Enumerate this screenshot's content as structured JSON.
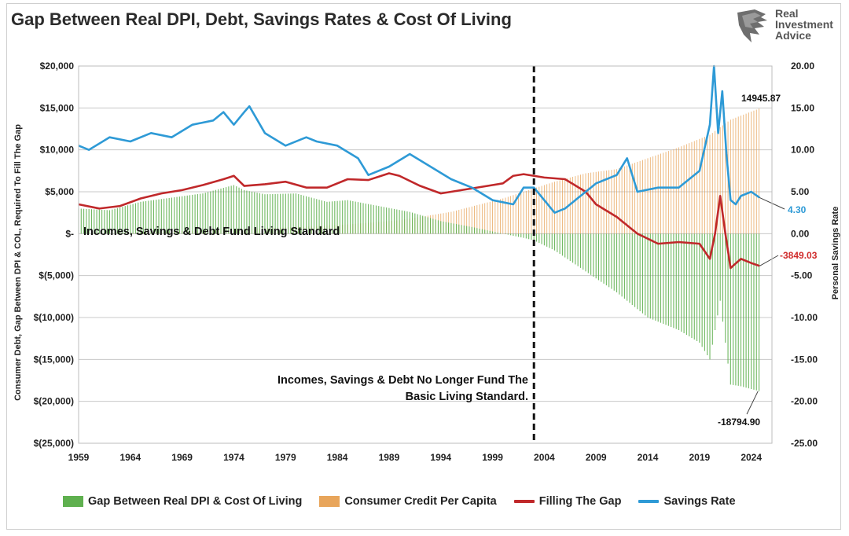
{
  "title": "Gap Between Real DPI, Debt, Savings Rates & Cost Of Living",
  "logo": {
    "brand_line1": "Real",
    "brand_line2": "Investment",
    "brand_line3": "Advice"
  },
  "chart_data": {
    "type": "bar+line",
    "title": "Gap Between Real DPI, Debt, Savings Rates & Cost Of Living",
    "ylabel_left": "Consumer Debt, Gap Between DPI & COL, Required To Fill The Gap",
    "ylabel_right": "Personal Savings Rate",
    "ylim_left": [
      -25000,
      20000
    ],
    "ylim_right": [
      -25,
      20
    ],
    "yticks_left": [
      "$20,000",
      "$15,000",
      "$10,000",
      "$5,000",
      "$-",
      "$(5,000)",
      "$(10,000)",
      "$(15,000)",
      "$(20,000)",
      "$(25,000)"
    ],
    "yticks_right": [
      "20.00",
      "15.00",
      "10.00",
      "5.00",
      "0.00",
      "-5.00",
      "-10.00",
      "-15.00",
      "-20.00",
      "-25.00"
    ],
    "xlim": [
      1959,
      2026
    ],
    "xticks": [
      "1959",
      "1964",
      "1969",
      "1974",
      "1979",
      "1984",
      "1989",
      "1994",
      "1999",
      "2004",
      "2009",
      "2014",
      "2019",
      "2024"
    ],
    "grid": true,
    "vertical_marker_year": 2003,
    "annotations": [
      "Incomes, Savings & Debt Fund Living Standard",
      "Incomes, Savings & Debt No Longer Fund The",
      "Basic Living Standard."
    ],
    "data_labels": {
      "consumer_credit_last": "14945.87",
      "savings_rate_last": "4.30",
      "filling_gap_last": "-3849.03",
      "gap_last": "-18794.90"
    },
    "legend_position": "bottom",
    "series": [
      {
        "name": "Gap Between Real DPI & Cost Of Living",
        "kind": "bar",
        "axis": "left",
        "color": "#5fb04f",
        "x": [
          1959,
          1962,
          1965,
          1968,
          1971,
          1974,
          1975,
          1977,
          1980,
          1983,
          1985,
          1988,
          1991,
          1994,
          1997,
          2000,
          2002,
          2003,
          2005,
          2008,
          2011,
          2014,
          2017,
          2019,
          2020,
          2021,
          2022,
          2023,
          2024.8
        ],
        "y": [
          3000,
          2800,
          3800,
          4300,
          4800,
          5800,
          5200,
          4700,
          4800,
          3800,
          4000,
          3300,
          2600,
          1500,
          800,
          0,
          -500,
          -800,
          -2000,
          -4500,
          -7000,
          -10000,
          -11500,
          -13000,
          -15000,
          -8000,
          -18000,
          -18200,
          -18795
        ]
      },
      {
        "name": "Consumer Credit Per Capita",
        "kind": "bar",
        "axis": "left",
        "color": "#e8a55b",
        "x": [
          1959,
          1965,
          1970,
          1975,
          1980,
          1985,
          1990,
          1995,
          2000,
          2003,
          2005,
          2008,
          2011,
          2014,
          2017,
          2020,
          2022,
          2024.8
        ],
        "y": [
          0,
          150,
          350,
          550,
          800,
          1100,
          1600,
          2600,
          4200,
          5400,
          6200,
          7200,
          7700,
          9000,
          10300,
          11800,
          13600,
          14946
        ]
      },
      {
        "name": "Filling The Gap",
        "kind": "line",
        "axis": "left",
        "color": "#c0282a",
        "x": [
          1959,
          1961,
          1963,
          1965,
          1967,
          1969,
          1971,
          1973,
          1974,
          1975,
          1977,
          1979,
          1981,
          1983,
          1985,
          1987,
          1989,
          1990,
          1992,
          1994,
          1996,
          1998,
          2000,
          2001,
          2002,
          2004,
          2006,
          2008,
          2009,
          2011,
          2013,
          2015,
          2017,
          2019,
          2020,
          2020.5,
          2021,
          2021.5,
          2022,
          2023,
          2024,
          2024.8
        ],
        "y": [
          3500,
          3000,
          3300,
          4200,
          4800,
          5200,
          5800,
          6500,
          6900,
          5700,
          5900,
          6200,
          5500,
          5500,
          6500,
          6400,
          7200,
          6900,
          5700,
          4800,
          5200,
          5600,
          6000,
          6900,
          7100,
          6700,
          6500,
          5000,
          3500,
          2000,
          0,
          -1200,
          -1000,
          -1200,
          -3000,
          0,
          4500,
          0,
          -4100,
          -3000,
          -3500,
          -3849
        ]
      },
      {
        "name": "Savings Rate",
        "kind": "line",
        "axis": "right",
        "color": "#2e9ad6",
        "x": [
          1959,
          1960,
          1962,
          1964,
          1966,
          1968,
          1970,
          1972,
          1973,
          1974,
          1975,
          1975.5,
          1977,
          1979,
          1981,
          1982,
          1984,
          1986,
          1987,
          1989,
          1991,
          1993,
          1995,
          1997,
          1999,
          2001,
          2002,
          2003,
          2005,
          2006,
          2008,
          2009,
          2011,
          2012,
          2013,
          2015,
          2017,
          2019,
          2020,
          2020.4,
          2020.8,
          2021.2,
          2021.6,
          2022,
          2022.5,
          2023,
          2024,
          2024.8
        ],
        "y": [
          10.5,
          10.0,
          11.5,
          11.0,
          12.0,
          11.5,
          13.0,
          13.5,
          14.5,
          13.0,
          14.5,
          15.2,
          12.0,
          10.5,
          11.5,
          11.0,
          10.5,
          9.0,
          7.0,
          8.0,
          9.5,
          8.0,
          6.5,
          5.5,
          4.0,
          3.5,
          5.5,
          5.5,
          2.5,
          3.0,
          5.0,
          6.0,
          7.0,
          9.0,
          5.0,
          5.5,
          5.5,
          7.5,
          13.0,
          20.0,
          12.0,
          17.0,
          9.5,
          4.0,
          3.5,
          4.5,
          5.0,
          4.3
        ]
      }
    ]
  },
  "legend": [
    {
      "label": "Gap Between Real DPI & Cost Of Living",
      "color": "#5fb04f",
      "kind": "box"
    },
    {
      "label": "Consumer Credit Per Capita",
      "color": "#e8a55b",
      "kind": "box"
    },
    {
      "label": "Filling The Gap",
      "color": "#c0282a",
      "kind": "line"
    },
    {
      "label": "Savings Rate",
      "color": "#2e9ad6",
      "kind": "line"
    }
  ]
}
